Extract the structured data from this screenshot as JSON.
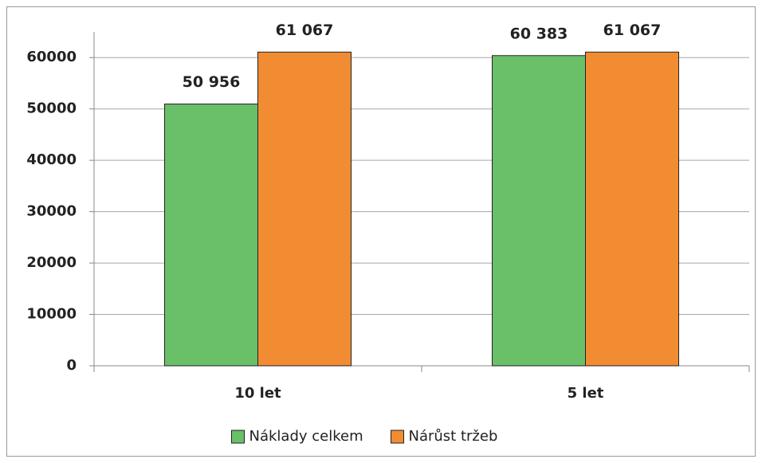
{
  "chart_data": {
    "type": "bar",
    "categories": [
      "10 let",
      "5 let"
    ],
    "series": [
      {
        "name": "Náklady celkem",
        "color": "#6abf69",
        "values": [
          50956,
          60383
        ],
        "value_labels": [
          "50 956",
          "60 383"
        ]
      },
      {
        "name": "Nárůst tržeb",
        "color": "#f28c33",
        "values": [
          61067,
          61067
        ],
        "value_labels": [
          "61 067",
          "61 067"
        ]
      }
    ],
    "ylim": [
      0,
      65000
    ],
    "yticks": [
      0,
      10000,
      20000,
      30000,
      40000,
      50000,
      60000
    ],
    "grid": true,
    "legend": "bottom"
  }
}
